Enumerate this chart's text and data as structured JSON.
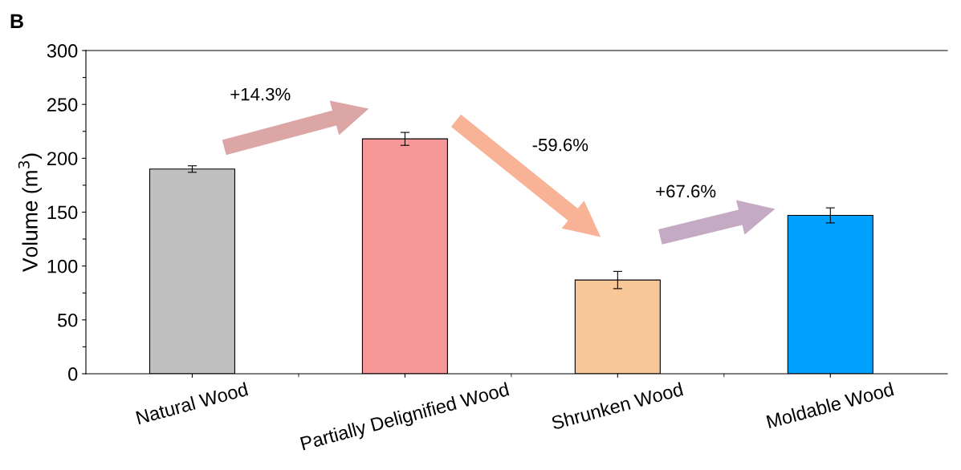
{
  "chart_data": {
    "type": "bar",
    "ylabel": "Volume (m$^{3}$)",
    "categories": [
      "Natural Wood",
      "Partially Delignified Wood",
      "Shrunken Wood",
      "Moldable Wood"
    ],
    "values": [
      190,
      218,
      87,
      147
    ],
    "errors": [
      3,
      6,
      8,
      7
    ],
    "colors": [
      "#c0c0c0",
      "#f79797",
      "#f8c797",
      "#00a0ff"
    ],
    "ylim": [
      0,
      300
    ],
    "yticks": [
      0,
      {
        "value": 25,
        "label": null
      },
      50,
      {
        "value": 75,
        "label": null
      },
      100,
      {
        "value": 125,
        "label": null
      },
      150,
      {
        "value": 175,
        "label": null
      },
      200,
      {
        "value": 225,
        "label": null
      },
      250,
      {
        "value": 275,
        "label": null
      },
      300
    ],
    "annotations": [
      "B",
      "+14.3%",
      "-59.6%",
      "+67.6%"
    ],
    "grid": false,
    "legend": false
  }
}
